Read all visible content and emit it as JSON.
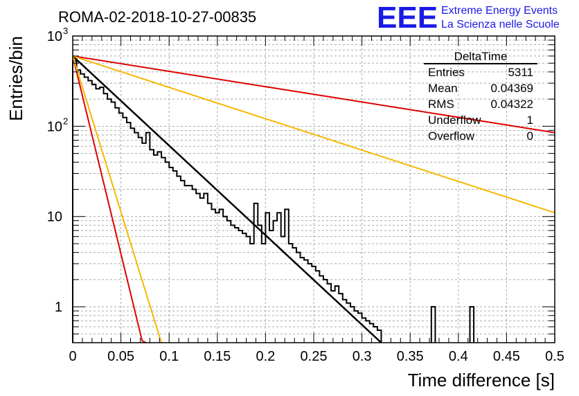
{
  "header": {
    "run_title": "ROMA-02-2018-10-27-00835",
    "logo_text": "EEE",
    "logo_line1": "Extreme Energy Events",
    "logo_line2": "La Scienza nelle Scuole"
  },
  "stats": {
    "name": "DeltaTime",
    "rows": [
      {
        "label": "Entries",
        "value": "5311"
      },
      {
        "label": "Mean",
        "value": "0.04369"
      },
      {
        "label": "RMS",
        "value": "0.04322"
      },
      {
        "label": "Underflow",
        "value": "1"
      },
      {
        "label": "Overflow",
        "value": "0"
      }
    ]
  },
  "chart_data": {
    "type": "line",
    "title": "ROMA-02-2018-10-27-00835",
    "xlabel": "Time difference [s]",
    "ylabel": "Entries/bin",
    "xlim": [
      0,
      0.5
    ],
    "ylim": [
      0.4,
      1000
    ],
    "yscale": "log",
    "grid": true,
    "legend": "top-right",
    "x_ticks": [
      {
        "value": 0,
        "label": "0"
      },
      {
        "value": 0.05,
        "label": "0.05"
      },
      {
        "value": 0.1,
        "label": "0.1"
      },
      {
        "value": 0.15,
        "label": "0.15"
      },
      {
        "value": 0.2,
        "label": "0.2"
      },
      {
        "value": 0.25,
        "label": "0.25"
      },
      {
        "value": 0.3,
        "label": "0.3"
      },
      {
        "value": 0.35,
        "label": "0.35"
      },
      {
        "value": 0.4,
        "label": "0.4"
      },
      {
        "value": 0.45,
        "label": "0.45"
      },
      {
        "value": 0.5,
        "label": "0.5"
      }
    ],
    "y_ticks": [
      {
        "value": 1,
        "label": "1"
      },
      {
        "value": 10,
        "label": "10"
      },
      {
        "value": 100,
        "label": "10",
        "exponent": "2"
      },
      {
        "value": 1000,
        "label": "10",
        "exponent": "3"
      }
    ],
    "histogram": {
      "color": "#000000",
      "bin_width": 0.004,
      "x_start": 0,
      "values": [
        530,
        420,
        380,
        350,
        320,
        290,
        260,
        270,
        230,
        200,
        185,
        160,
        140,
        125,
        110,
        95,
        85,
        75,
        65,
        85,
        55,
        48,
        52,
        45,
        40,
        35,
        32,
        28,
        25,
        22,
        22,
        20,
        18,
        16,
        18,
        14,
        12,
        11,
        12,
        10,
        9,
        8,
        7.5,
        7,
        6.5,
        6,
        5,
        14,
        8,
        5,
        11,
        7,
        9,
        11,
        6,
        12,
        5,
        4.5,
        4,
        3.5,
        3.3,
        3.0,
        2.8,
        2.5,
        2.2,
        2.0,
        1.8,
        1.5,
        1.7,
        1.4,
        1.2,
        1.1,
        1.0,
        0.9,
        0.85,
        0.75,
        0.7,
        0.65,
        0.6,
        0.55
      ]
    },
    "series": [
      {
        "color": "#000000",
        "x": [
          0,
          0.32
        ],
        "y": [
          600,
          0.4
        ]
      },
      {
        "color": "#dd0000",
        "x": [
          0,
          0.072,
          0.076
        ],
        "y": [
          600,
          0.42,
          0.4
        ]
      },
      {
        "color": "#dd0000",
        "x": [
          0,
          0.5
        ],
        "y": [
          600,
          85
        ]
      },
      {
        "color": "#f5b800",
        "x": [
          0,
          0.092
        ],
        "y": [
          600,
          0.4
        ]
      },
      {
        "color": "#f5b800",
        "x": [
          0,
          0.5
        ],
        "y": [
          600,
          11
        ]
      }
    ],
    "tail_bins": [
      {
        "x": 0.372,
        "y": 1
      },
      {
        "x": 0.412,
        "y": 1
      }
    ]
  }
}
